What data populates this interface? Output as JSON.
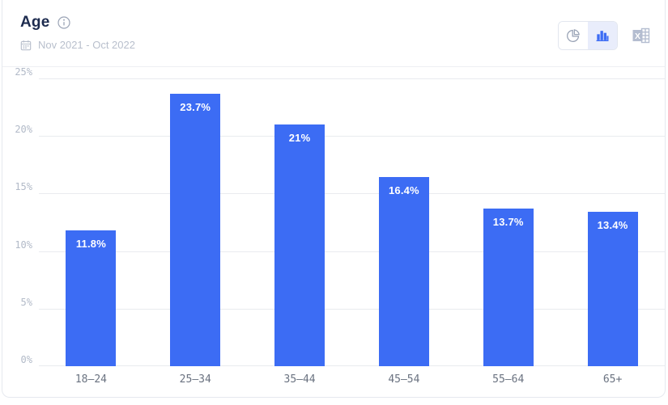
{
  "header": {
    "title": "Age",
    "date_range": "Nov 2021 - Oct 2022",
    "icons": {
      "info": "info-circle-icon",
      "calendar": "calendar-icon",
      "pie_view": "pie-chart-icon",
      "bar_view": "bar-chart-icon",
      "excel": "excel-export-icon"
    },
    "view_toggle": {
      "options": [
        "pie",
        "bar"
      ],
      "active": "bar"
    }
  },
  "colors": {
    "bar": "#3c6cf4",
    "title": "#1d2b4f",
    "muted_text": "#b8bfcc",
    "y_tick": "#b2bac8",
    "x_tick": "#6a7280",
    "gridline": "#e9ebef",
    "active_toggle_bg": "#e9edfb",
    "card_border": "#e6e9ef",
    "inactive_icon": "#97a1b4",
    "excel_icon": "#b4bdd0"
  },
  "chart_data": {
    "type": "bar",
    "title": "Age",
    "categories": [
      "18–24",
      "25–34",
      "35–44",
      "45–54",
      "55–64",
      "65+"
    ],
    "values": [
      11.8,
      23.7,
      21,
      16.4,
      13.7,
      13.4
    ],
    "value_labels": [
      "11.8%",
      "23.7%",
      "21%",
      "16.4%",
      "13.7%",
      "13.4%"
    ],
    "xlabel": "",
    "ylabel": "",
    "ylim": [
      0,
      25
    ],
    "ytick_step": 5,
    "yticks": [
      "0%",
      "5%",
      "10%",
      "15%",
      "20%",
      "25%"
    ],
    "grid": true,
    "legend": false,
    "bar_color": "#3c6cf4",
    "label_position": "inside-top",
    "label_color": "#ffffff"
  }
}
